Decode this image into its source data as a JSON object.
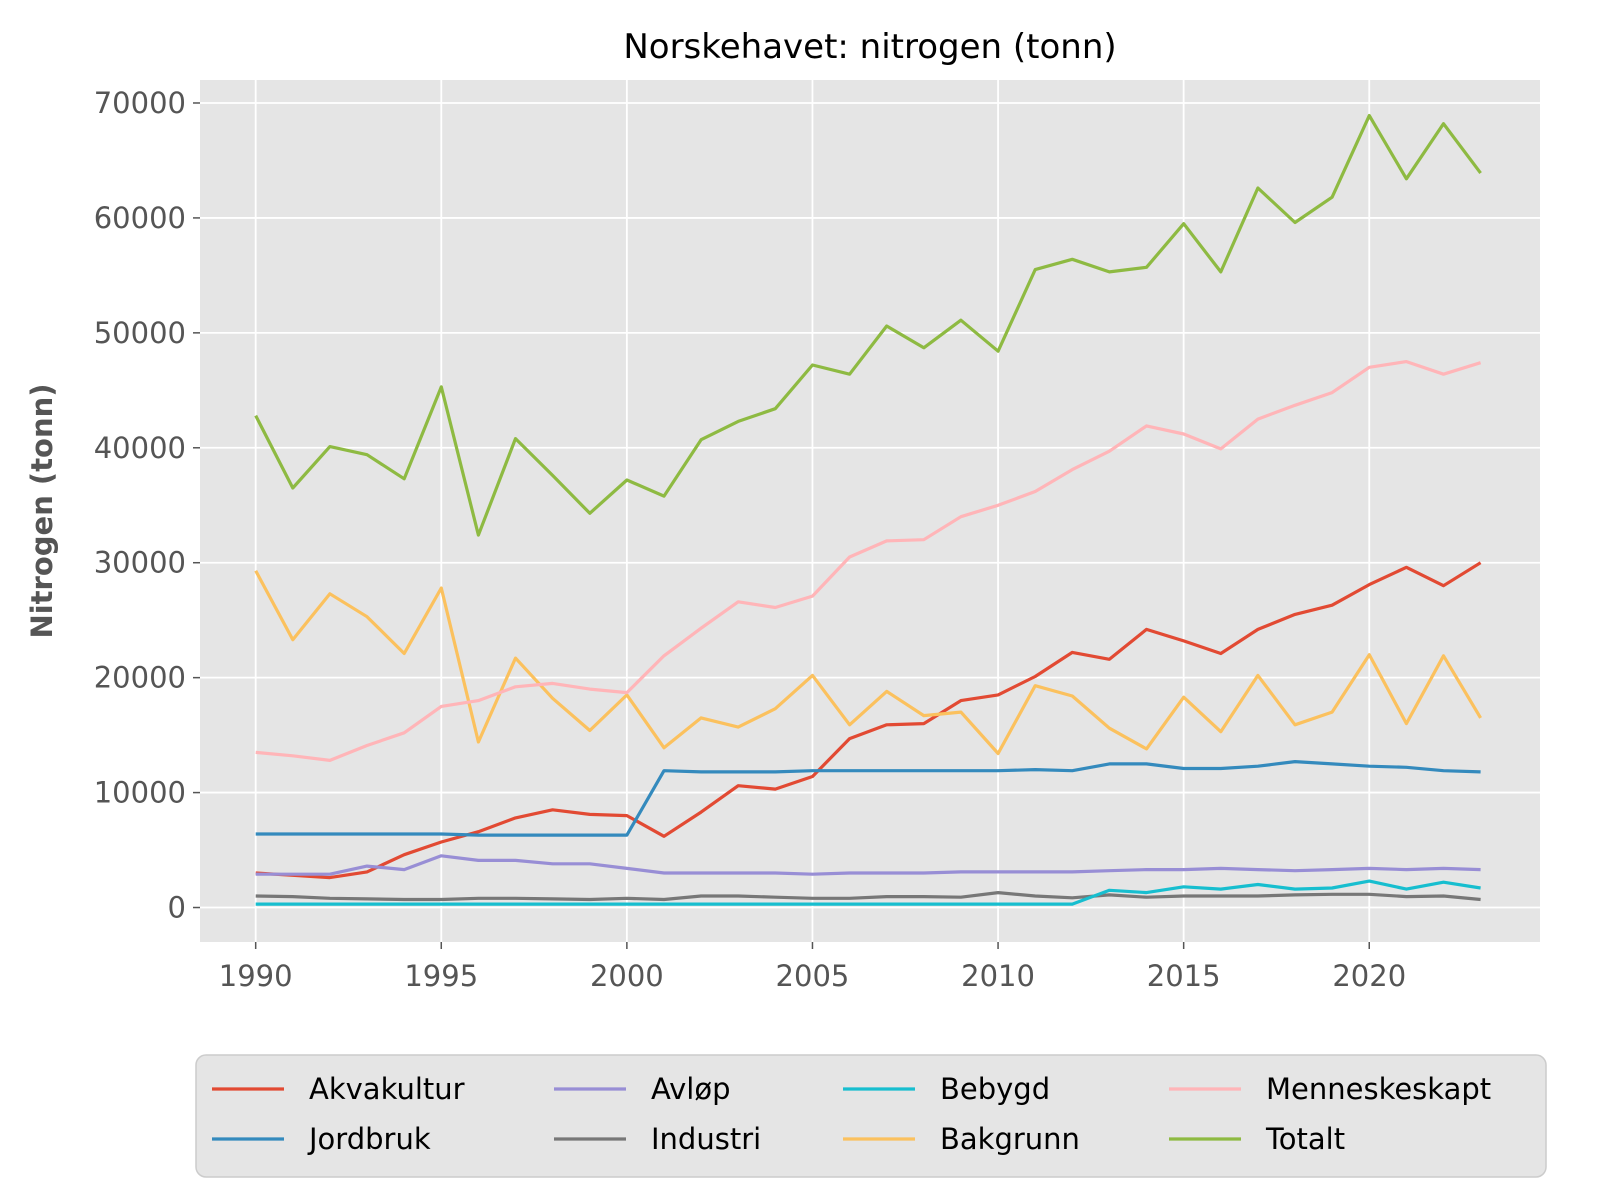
{
  "chart_data": {
    "type": "line",
    "title": "Norskehavet: nitrogen (tonn)",
    "xlabel": "",
    "ylabel": "Nitrogen (tonn)",
    "xlim": [
      1988.5,
      2024.6
    ],
    "ylim": [
      -3000,
      72000
    ],
    "x_ticks": [
      1990,
      1995,
      2000,
      2005,
      2010,
      2015,
      2020
    ],
    "y_ticks": [
      0,
      10000,
      20000,
      30000,
      40000,
      50000,
      60000,
      70000
    ],
    "grid": true,
    "legend_position": "bottom, outside plot, 4 columns",
    "x": [
      1990,
      1991,
      1992,
      1993,
      1994,
      1995,
      1996,
      1997,
      1998,
      1999,
      2000,
      2001,
      2002,
      2003,
      2004,
      2005,
      2006,
      2007,
      2008,
      2009,
      2010,
      2011,
      2012,
      2013,
      2014,
      2015,
      2016,
      2017,
      2018,
      2019,
      2020,
      2021,
      2022,
      2023
    ],
    "series": [
      {
        "name": "Akvakultur",
        "color": "#E24A33",
        "values": [
          3000,
          2800,
          2600,
          3100,
          4600,
          5700,
          6600,
          7800,
          8500,
          8100,
          8000,
          6200,
          8300,
          10600,
          10300,
          11400,
          14700,
          15900,
          16000,
          18000,
          18500,
          20100,
          22200,
          21600,
          24200,
          23200,
          22100,
          24200,
          25500,
          26300,
          28100,
          29600,
          28000,
          30000
        ]
      },
      {
        "name": "Jordbruk",
        "color": "#348ABD",
        "values": [
          6400,
          6400,
          6400,
          6400,
          6400,
          6400,
          6300,
          6300,
          6300,
          6300,
          6300,
          11900,
          11800,
          11800,
          11800,
          11900,
          11900,
          11900,
          11900,
          11900,
          11900,
          12000,
          11900,
          12500,
          12500,
          12100,
          12100,
          12300,
          12700,
          12500,
          12300,
          12200,
          11900,
          11800
        ]
      },
      {
        "name": "Avløp",
        "color": "#988ED5",
        "values": [
          2900,
          2900,
          2900,
          3600,
          3300,
          4500,
          4100,
          4100,
          3800,
          3800,
          3400,
          3000,
          3000,
          3000,
          3000,
          2900,
          3000,
          3000,
          3000,
          3100,
          3100,
          3100,
          3100,
          3200,
          3300,
          3300,
          3400,
          3300,
          3200,
          3300,
          3400,
          3300,
          3400,
          3300
        ]
      },
      {
        "name": "Industri",
        "color": "#777777",
        "values": [
          1000,
          950,
          800,
          750,
          700,
          700,
          800,
          800,
          750,
          700,
          800,
          700,
          1000,
          1000,
          900,
          800,
          800,
          950,
          950,
          900,
          1300,
          1000,
          850,
          1100,
          900,
          1000,
          1000,
          1000,
          1100,
          1150,
          1150,
          950,
          1000,
          700
        ]
      },
      {
        "name": "Bebygd",
        "color": "#17BECF",
        "values": [
          300,
          300,
          300,
          300,
          300,
          300,
          300,
          300,
          300,
          300,
          300,
          300,
          300,
          300,
          300,
          300,
          300,
          300,
          300,
          300,
          300,
          300,
          300,
          1500,
          1300,
          1800,
          1600,
          2000,
          1600,
          1700,
          2300,
          1600,
          2200,
          1700
        ]
      },
      {
        "name": "Bakgrunn",
        "color": "#FBC15E",
        "values": [
          29300,
          23300,
          27300,
          25300,
          22100,
          27800,
          14400,
          21700,
          18200,
          15400,
          18500,
          13900,
          16500,
          15700,
          17300,
          20200,
          15900,
          18800,
          16700,
          17000,
          13400,
          19300,
          18400,
          15600,
          13800,
          18300,
          15300,
          20200,
          15900,
          17000,
          22000,
          16000,
          21900,
          16500
        ]
      },
      {
        "name": "Menneskeskapt",
        "color": "#FFB5B8",
        "values": [
          13500,
          13200,
          12800,
          14100,
          15200,
          17500,
          18000,
          19200,
          19500,
          19000,
          18700,
          21900,
          24300,
          26600,
          26100,
          27100,
          30500,
          31900,
          32000,
          34000,
          35000,
          36200,
          38100,
          39700,
          41900,
          41200,
          39900,
          42500,
          43700,
          44800,
          47000,
          47500,
          46400,
          47400
        ]
      },
      {
        "name": "Totalt",
        "color": "#8EBA42",
        "values": [
          42800,
          36500,
          40100,
          39400,
          37300,
          45300,
          32400,
          40800,
          37600,
          34300,
          37200,
          35800,
          40700,
          42300,
          43400,
          47200,
          46400,
          50600,
          48700,
          51100,
          48400,
          55500,
          56400,
          55300,
          55700,
          59500,
          55300,
          62600,
          59600,
          61800,
          68900,
          63400,
          68200,
          63900
        ]
      }
    ]
  },
  "legend_order": [
    "Akvakultur",
    "Jordbruk",
    "Avløp",
    "Industri",
    "Bebygd",
    "Bakgrunn",
    "Menneskeskapt",
    "Totalt"
  ],
  "colors": {
    "plot_background": "#E5E5E5",
    "grid": "#FFFFFF",
    "tick_text": "#555555",
    "legend_background": "#E5E5E5",
    "legend_border": "#CCCCCC"
  }
}
